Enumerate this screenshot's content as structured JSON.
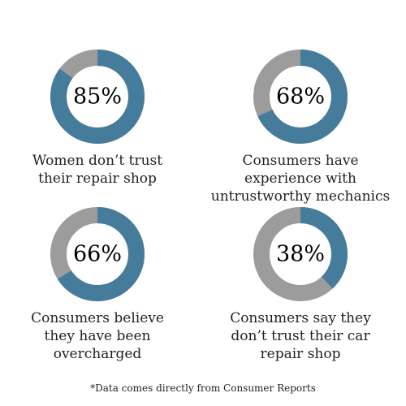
{
  "colors": {
    "value_arc": "#467c9b",
    "remainder_arc": "#9c9c9c"
  },
  "chart_data": [
    {
      "type": "pie",
      "values": [
        85,
        15
      ],
      "label": "85%",
      "caption": [
        "Women don’t trust",
        "their repair shop"
      ]
    },
    {
      "type": "pie",
      "values": [
        68,
        32
      ],
      "label": "68%",
      "caption": [
        "Consumers have",
        "experience with",
        "untrustworthy mechanics"
      ]
    },
    {
      "type": "pie",
      "values": [
        66,
        34
      ],
      "label": "66%",
      "caption": [
        "Consumers believe",
        "they have been",
        "overcharged"
      ]
    },
    {
      "type": "pie",
      "values": [
        38,
        62
      ],
      "label": "38%",
      "caption": [
        "Consumers say they",
        "don’t trust their car",
        "repair shop"
      ]
    }
  ],
  "footnote": "*Data comes directly from Consumer Reports"
}
